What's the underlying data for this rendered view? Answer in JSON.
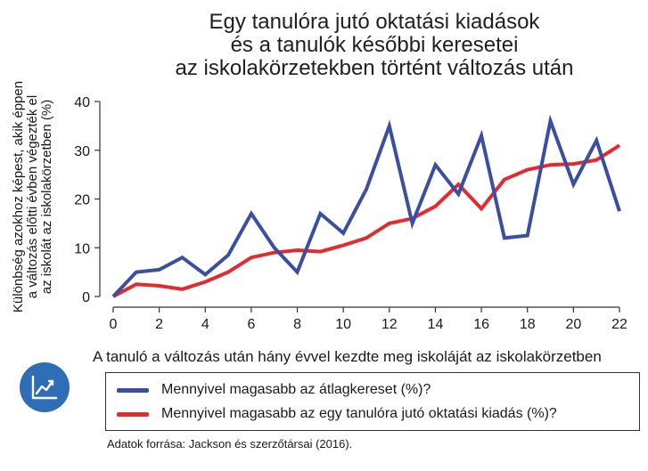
{
  "title": {
    "line1": "Egy tanulóra jutó oktatási kiadások",
    "line2": "és a tanulók későbbi keresetei",
    "line3": "az iskolakörzetekben történt változás után"
  },
  "chart_data": {
    "type": "line",
    "x": [
      0,
      1,
      2,
      3,
      4,
      5,
      6,
      7,
      8,
      9,
      10,
      11,
      12,
      13,
      14,
      15,
      16,
      17,
      18,
      19,
      20,
      21,
      22
    ],
    "series": [
      {
        "name": "Mennyivel magasabb az átlagkereset (%)?",
        "color": "#3a4fa0",
        "values": [
          0,
          5,
          5.5,
          8,
          4.5,
          8.5,
          17,
          10,
          5,
          17,
          13,
          22,
          35,
          15,
          27,
          21,
          33,
          12,
          12.5,
          36,
          23,
          32,
          17.5
        ]
      },
      {
        "name": "Mennyivel magasabb az egy tanulóra jutó oktatási kiadás (%)?",
        "color": "#e52a2f",
        "values": [
          0,
          2.5,
          2.2,
          1.5,
          3,
          5,
          8,
          9,
          9.5,
          9.2,
          10.5,
          12,
          15,
          16,
          18.5,
          23,
          18,
          24,
          26,
          27,
          27.2,
          28,
          31
        ]
      }
    ],
    "xticks": [
      0,
      2,
      4,
      6,
      8,
      10,
      12,
      14,
      16,
      18,
      20,
      22
    ],
    "yticks": [
      0,
      10,
      20,
      30,
      40
    ],
    "xlim": [
      0,
      22
    ],
    "ylim": [
      0,
      40
    ],
    "xlabel": "A tanuló a változás után hány évvel kezdte meg iskoláját az iskolakörzetben",
    "ylabel": [
      "Különbség azokhoz képest, akik éppen",
      "a változás előtti évben végezték el",
      "az iskolát az iskolakörzetben (%)"
    ],
    "grid": false,
    "legend_position": "bottom"
  },
  "legend": {
    "item1": "Mennyivel magasabb az átlagkereset (%)?",
    "item2": "Mennyivel magasabb az egy tanulóra jutó oktatási kiadás (%)?"
  },
  "badge_icon": "line-chart-icon",
  "source": "Adatok forrása: Jackson és szerzőtársai (2016).",
  "colors": {
    "blue": "#3a4fa0",
    "red": "#e52a2f",
    "badge": "#2f6db6"
  }
}
